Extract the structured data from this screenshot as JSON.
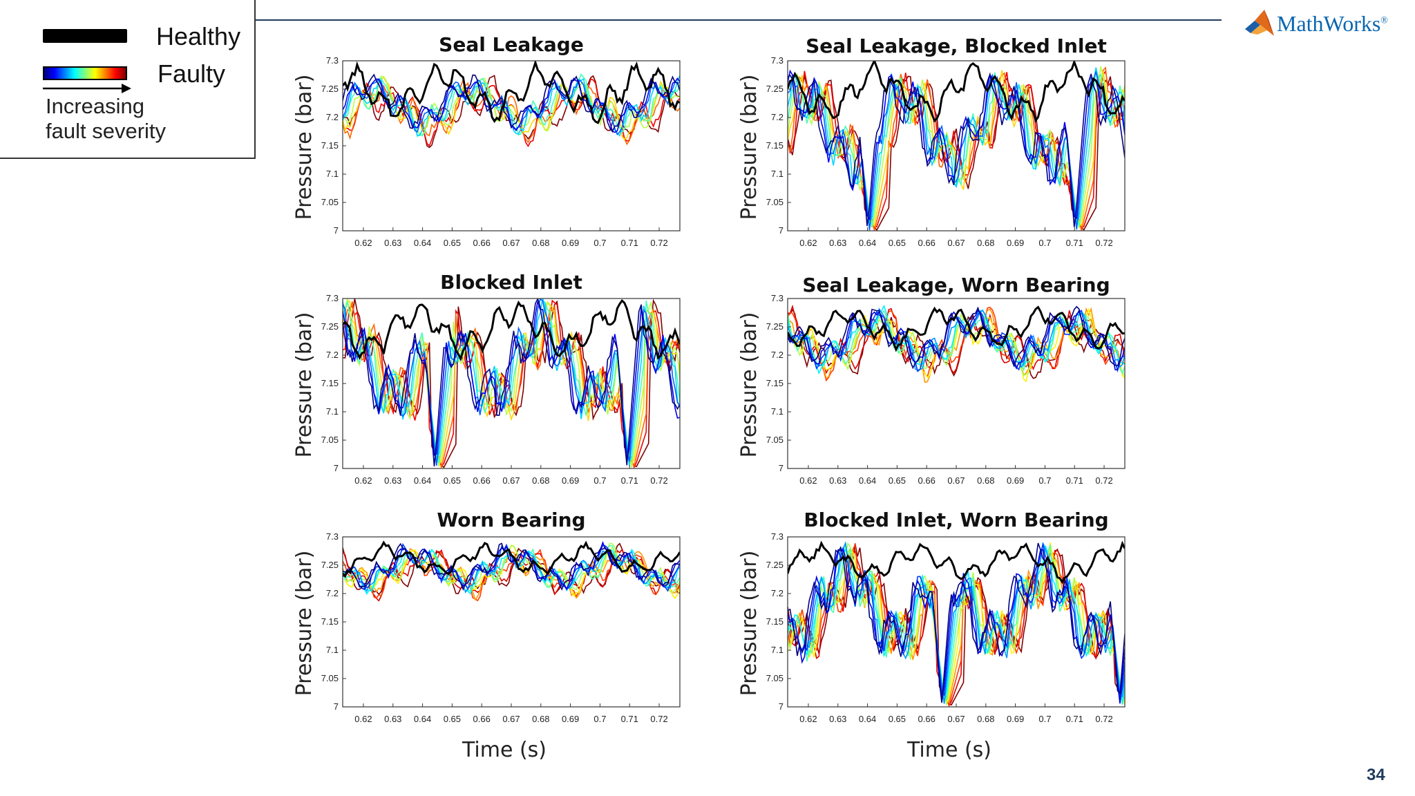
{
  "legend": {
    "healthy_label": "Healthy",
    "faulty_label": "Faulty",
    "note_line1": "Increasing",
    "note_line2": "fault severity",
    "healthy_color": "#000000",
    "faulty_colormap": "jet"
  },
  "logo": {
    "text": "MathWorks",
    "trademark": "®"
  },
  "page_number": "34",
  "x_axis_label": "Time (s)",
  "chart_data": [
    {
      "type": "line",
      "title": "Seal Leakage",
      "xlabel": "Time (s)",
      "ylabel": "Pressure (bar)",
      "xlim": [
        0.613,
        0.727
      ],
      "ylim": [
        7.0,
        7.3
      ],
      "xticks": [
        "0.62",
        "0.63",
        "0.64",
        "0.65",
        "0.66",
        "0.67",
        "0.68",
        "0.69",
        "0.7",
        "0.71",
        "0.72"
      ],
      "yticks": [
        "7",
        "7.05",
        "7.1",
        "7.15",
        "7.2",
        "7.25",
        "7.3"
      ],
      "healthy_min": 7.19,
      "healthy_max": 7.3,
      "faulty_min": 7.14,
      "faulty_max": 7.28,
      "series": [
        {
          "name": "Healthy",
          "color": "#000000",
          "fault_severity": 0
        },
        {
          "name": "Faulty",
          "colormap": "jet",
          "fault_severity": "increasing",
          "count": 10
        }
      ]
    },
    {
      "type": "line",
      "title": "Seal Leakage, Blocked Inlet",
      "xlabel": "Time (s)",
      "ylabel": "Pressure (bar)",
      "xlim": [
        0.613,
        0.727
      ],
      "ylim": [
        7.0,
        7.3
      ],
      "xticks": [
        "0.62",
        "0.63",
        "0.64",
        "0.65",
        "0.66",
        "0.67",
        "0.68",
        "0.69",
        "0.7",
        "0.71",
        "0.72"
      ],
      "yticks": [
        "7",
        "7.05",
        "7.1",
        "7.15",
        "7.2",
        "7.25",
        "7.3"
      ],
      "healthy_min": 7.19,
      "healthy_max": 7.3,
      "faulty_min": 7.0,
      "faulty_max": 7.29,
      "dips_at_time": [
        0.64,
        0.71
      ],
      "series": [
        {
          "name": "Healthy",
          "color": "#000000",
          "fault_severity": 0
        },
        {
          "name": "Faulty",
          "colormap": "jet",
          "fault_severity": "increasing",
          "count": 10
        }
      ]
    },
    {
      "type": "line",
      "title": "Blocked Inlet",
      "xlabel": "Time (s)",
      "ylabel": "Pressure (bar)",
      "xlim": [
        0.613,
        0.727
      ],
      "ylim": [
        7.0,
        7.3
      ],
      "xticks": [
        "0.62",
        "0.63",
        "0.64",
        "0.65",
        "0.66",
        "0.67",
        "0.68",
        "0.69",
        "0.7",
        "0.71",
        "0.72"
      ],
      "yticks": [
        "7",
        "7.05",
        "7.1",
        "7.15",
        "7.2",
        "7.25",
        "7.3"
      ],
      "healthy_min": 7.19,
      "healthy_max": 7.3,
      "faulty_min": 7.0,
      "faulty_max": 7.3,
      "dips_at_time": [
        0.644,
        0.709
      ],
      "series": [
        {
          "name": "Healthy",
          "color": "#000000",
          "fault_severity": 0
        },
        {
          "name": "Faulty",
          "colormap": "jet",
          "fault_severity": "increasing",
          "count": 10
        }
      ]
    },
    {
      "type": "line",
      "title": "Seal Leakage, Worn Bearing",
      "xlabel": "Time (s)",
      "ylabel": "Pressure (bar)",
      "xlim": [
        0.613,
        0.727
      ],
      "ylim": [
        7.0,
        7.3
      ],
      "xticks": [
        "0.62",
        "0.63",
        "0.64",
        "0.65",
        "0.66",
        "0.67",
        "0.68",
        "0.69",
        "0.7",
        "0.71",
        "0.72"
      ],
      "yticks": [
        "7",
        "7.05",
        "7.1",
        "7.15",
        "7.2",
        "7.25",
        "7.3"
      ],
      "healthy_min": 7.21,
      "healthy_max": 7.29,
      "faulty_min": 7.14,
      "faulty_max": 7.29,
      "series": [
        {
          "name": "Healthy",
          "color": "#000000",
          "fault_severity": 0
        },
        {
          "name": "Faulty",
          "colormap": "jet",
          "fault_severity": "increasing",
          "count": 12
        }
      ]
    },
    {
      "type": "line",
      "title": "Worn Bearing",
      "xlabel": "Time (s)",
      "ylabel": "Pressure (bar)",
      "xlim": [
        0.613,
        0.727
      ],
      "ylim": [
        7.0,
        7.3
      ],
      "xticks": [
        "0.62",
        "0.63",
        "0.64",
        "0.65",
        "0.66",
        "0.67",
        "0.68",
        "0.69",
        "0.7",
        "0.71",
        "0.72"
      ],
      "yticks": [
        "7",
        "7.05",
        "7.1",
        "7.15",
        "7.2",
        "7.25",
        "7.3"
      ],
      "healthy_min": 7.23,
      "healthy_max": 7.29,
      "faulty_min": 7.18,
      "faulty_max": 7.29,
      "series": [
        {
          "name": "Healthy",
          "color": "#000000",
          "fault_severity": 0
        },
        {
          "name": "Faulty",
          "colormap": "jet",
          "fault_severity": "increasing",
          "count": 12
        }
      ]
    },
    {
      "type": "line",
      "title": "Blocked Inlet, Worn Bearing",
      "xlabel": "Time (s)",
      "ylabel": "Pressure (bar)",
      "xlim": [
        0.613,
        0.727
      ],
      "ylim": [
        7.0,
        7.3
      ],
      "xticks": [
        "0.62",
        "0.63",
        "0.64",
        "0.65",
        "0.66",
        "0.67",
        "0.68",
        "0.69",
        "0.7",
        "0.71",
        "0.72"
      ],
      "yticks": [
        "7",
        "7.05",
        "7.1",
        "7.15",
        "7.2",
        "7.25",
        "7.3"
      ],
      "healthy_min": 7.22,
      "healthy_max": 7.29,
      "faulty_min": 7.0,
      "faulty_max": 7.29,
      "dips_at_time": [
        0.665,
        0.725
      ],
      "series": [
        {
          "name": "Healthy",
          "color": "#000000",
          "fault_severity": 0
        },
        {
          "name": "Faulty",
          "colormap": "jet",
          "fault_severity": "increasing",
          "count": 12
        }
      ]
    }
  ]
}
